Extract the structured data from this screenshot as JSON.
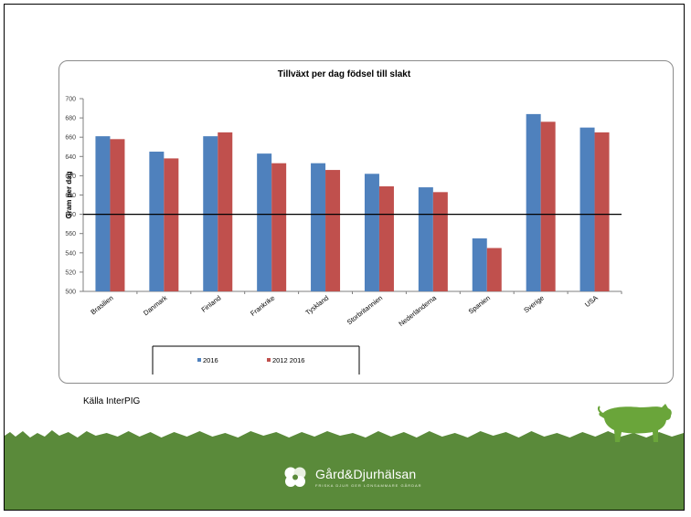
{
  "chart_data": {
    "type": "bar",
    "title": "Tillväxt per dag födsel till slakt",
    "ylabel": "Gram per dag",
    "xlabel": "",
    "ylim": [
      500,
      700
    ],
    "yticks": [
      500,
      520,
      540,
      560,
      580,
      600,
      620,
      640,
      660,
      680,
      700
    ],
    "reference_line": 580,
    "categories": [
      "Brasilien",
      "Danmark",
      "Finland",
      "Frankrike",
      "Tyskland",
      "Storbritannien",
      "Nederländerna",
      "Spanien",
      "Sverige",
      "USA"
    ],
    "series": [
      {
        "name": "2016",
        "color": "#4f81bd",
        "values": [
          661,
          645,
          661,
          643,
          633,
          622,
          608,
          555,
          684,
          670
        ]
      },
      {
        "name": "2012 2016",
        "color": "#c0504d",
        "values": [
          658,
          638,
          665,
          633,
          626,
          609,
          603,
          545,
          676,
          665
        ]
      }
    ],
    "legend_position": "bottom"
  },
  "source_note": "Källa InterPIG",
  "footer": {
    "logo_name": "Gård&Djurhälsan",
    "logo_tagline": "FRISKA DJUR GER LÖNSAMMARE GÅRDAR",
    "background_color": "#5a8a3a",
    "icons": [
      "clover-logo-icon",
      "pig-silhouette-icon"
    ]
  }
}
